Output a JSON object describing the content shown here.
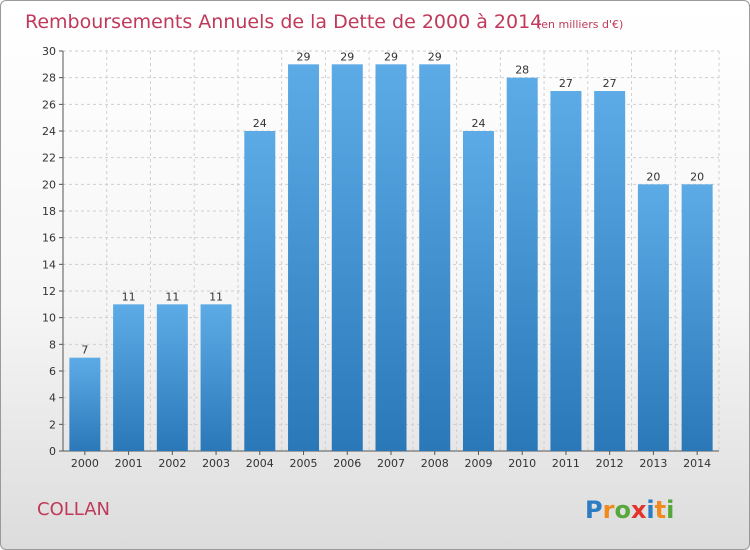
{
  "chart_data": {
    "type": "bar",
    "title": "Remboursements Annuels de la Dette de 2000 à 2014",
    "unit": "(en milliers d'€)",
    "categories": [
      "2000",
      "2001",
      "2002",
      "2003",
      "2004",
      "2005",
      "2006",
      "2007",
      "2008",
      "2009",
      "2010",
      "2011",
      "2012",
      "2013",
      "2014"
    ],
    "values": [
      7,
      11,
      11,
      11,
      24,
      29,
      29,
      29,
      29,
      24,
      28,
      27,
      27,
      20,
      20
    ],
    "ylim": [
      0,
      30
    ],
    "yticks": [
      0,
      2,
      4,
      6,
      8,
      10,
      12,
      14,
      16,
      18,
      20,
      22,
      24,
      26,
      28,
      30
    ],
    "grid": true,
    "xlabel": "",
    "ylabel": "",
    "colors": {
      "bar_light": "#5dabe6",
      "bar_dark": "#2a78b8",
      "text_accent": "#c0395a"
    }
  },
  "commune": "COLLAN",
  "logo": {
    "letters": [
      "P",
      "r",
      "o",
      "x",
      "i",
      "t",
      "i"
    ],
    "colors": [
      "#2c7cc4",
      "#f08a1c",
      "#56a83a",
      "#e2342c",
      "#2c7cc4",
      "#f08a1c",
      "#56a83a"
    ]
  }
}
